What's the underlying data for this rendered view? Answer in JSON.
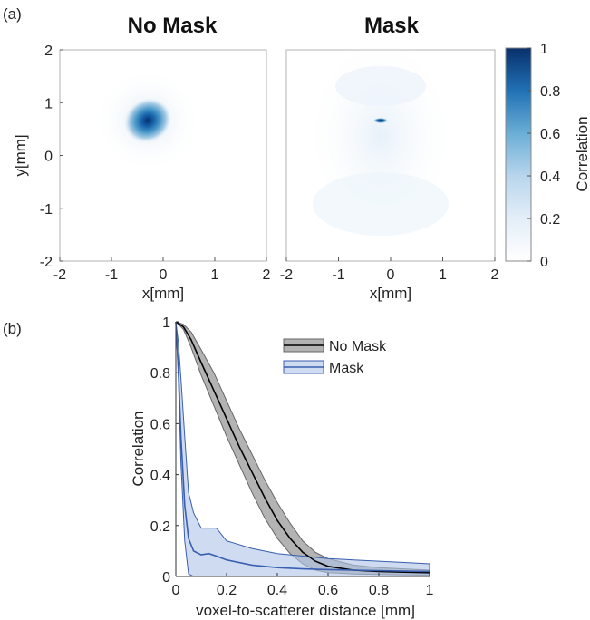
{
  "panel_a": {
    "label": "(a)",
    "left_title": "No Mask",
    "right_title": "Mask",
    "colorbar_label": "Correlation",
    "colorbar_ticks": [
      "0",
      "0.2",
      "0.4",
      "0.6",
      "0.8",
      "1"
    ],
    "colormap": [
      "#ffffff",
      "#e3eef8",
      "#b8d5ec",
      "#6aaed6",
      "#2171b5",
      "#08306b"
    ]
  },
  "panel_b": {
    "label": "(b)"
  },
  "chart_data": [
    {
      "type": "heatmap",
      "title": "No Mask",
      "xlabel": "x[mm]",
      "ylabel": "y[mm]",
      "xlim": [
        -2,
        2
      ],
      "ylim": [
        -2,
        2
      ],
      "xticks": [
        "-2",
        "-1",
        "0",
        "1",
        "2"
      ],
      "yticks": [
        "-2",
        "-1",
        "0",
        "1",
        "2"
      ],
      "peak": {
        "x": -0.25,
        "y": 0.65,
        "value": 1.0
      },
      "spread_mm": 0.3
    },
    {
      "type": "heatmap",
      "title": "Mask",
      "xlabel": "x[mm]",
      "xlim": [
        -2,
        2
      ],
      "ylim": [
        -2,
        2
      ],
      "xticks": [
        "-2",
        "-1",
        "0",
        "1",
        "2"
      ],
      "peak": {
        "x": -0.25,
        "y": 0.62,
        "value": 1.0
      },
      "spread_mm": 0.05
    },
    {
      "type": "line",
      "xlabel": "voxel-to-scatterer distance [mm]",
      "ylabel": "Correlation",
      "xlim": [
        0,
        1
      ],
      "ylim": [
        0,
        1
      ],
      "xticks": [
        "0",
        "0.2",
        "0.4",
        "0.6",
        "0.8",
        "1"
      ],
      "yticks": [
        "0",
        "0.2",
        "0.4",
        "0.6",
        "0.8",
        "1"
      ],
      "legend_position": "top-right",
      "series": [
        {
          "name": "No Mask",
          "color": "#000000",
          "band_color": "#9a9a9a",
          "x": [
            0,
            0.03,
            0.06,
            0.1,
            0.15,
            0.2,
            0.25,
            0.3,
            0.35,
            0.4,
            0.45,
            0.5,
            0.55,
            0.6,
            0.7,
            0.8,
            0.9,
            1.0
          ],
          "mean": [
            1.0,
            0.98,
            0.93,
            0.84,
            0.73,
            0.62,
            0.51,
            0.41,
            0.31,
            0.22,
            0.15,
            0.095,
            0.06,
            0.04,
            0.025,
            0.02,
            0.017,
            0.015
          ],
          "lower": [
            1.0,
            0.97,
            0.9,
            0.79,
            0.67,
            0.55,
            0.44,
            0.33,
            0.23,
            0.15,
            0.09,
            0.05,
            0.025,
            0.015,
            0.01,
            0.008,
            0.006,
            0.005
          ],
          "upper": [
            1.0,
            0.99,
            0.96,
            0.89,
            0.8,
            0.69,
            0.58,
            0.48,
            0.38,
            0.29,
            0.21,
            0.14,
            0.095,
            0.07,
            0.045,
            0.035,
            0.03,
            0.025
          ]
        },
        {
          "name": "Mask",
          "color": "#3a5fb0",
          "band_color": "#aec3e6",
          "x": [
            0,
            0.01,
            0.02,
            0.035,
            0.05,
            0.07,
            0.1,
            0.13,
            0.16,
            0.2,
            0.3,
            0.4,
            0.5,
            0.6,
            0.7,
            0.8,
            0.9,
            1.0
          ],
          "mean": [
            1.0,
            0.82,
            0.55,
            0.28,
            0.15,
            0.1,
            0.085,
            0.09,
            0.08,
            0.065,
            0.045,
            0.035,
            0.03,
            0.027,
            0.025,
            0.023,
            0.021,
            0.02
          ],
          "lower": [
            1.0,
            0.78,
            0.45,
            0.14,
            0.01,
            0.0,
            0.0,
            0.0,
            0.0,
            0.0,
            0.0,
            0.0,
            0.0,
            0.0,
            0.0,
            0.0,
            0.0,
            0.0
          ],
          "upper": [
            1.0,
            0.92,
            0.78,
            0.55,
            0.33,
            0.25,
            0.19,
            0.19,
            0.19,
            0.14,
            0.11,
            0.09,
            0.08,
            0.07,
            0.065,
            0.06,
            0.055,
            0.05
          ]
        }
      ]
    }
  ]
}
